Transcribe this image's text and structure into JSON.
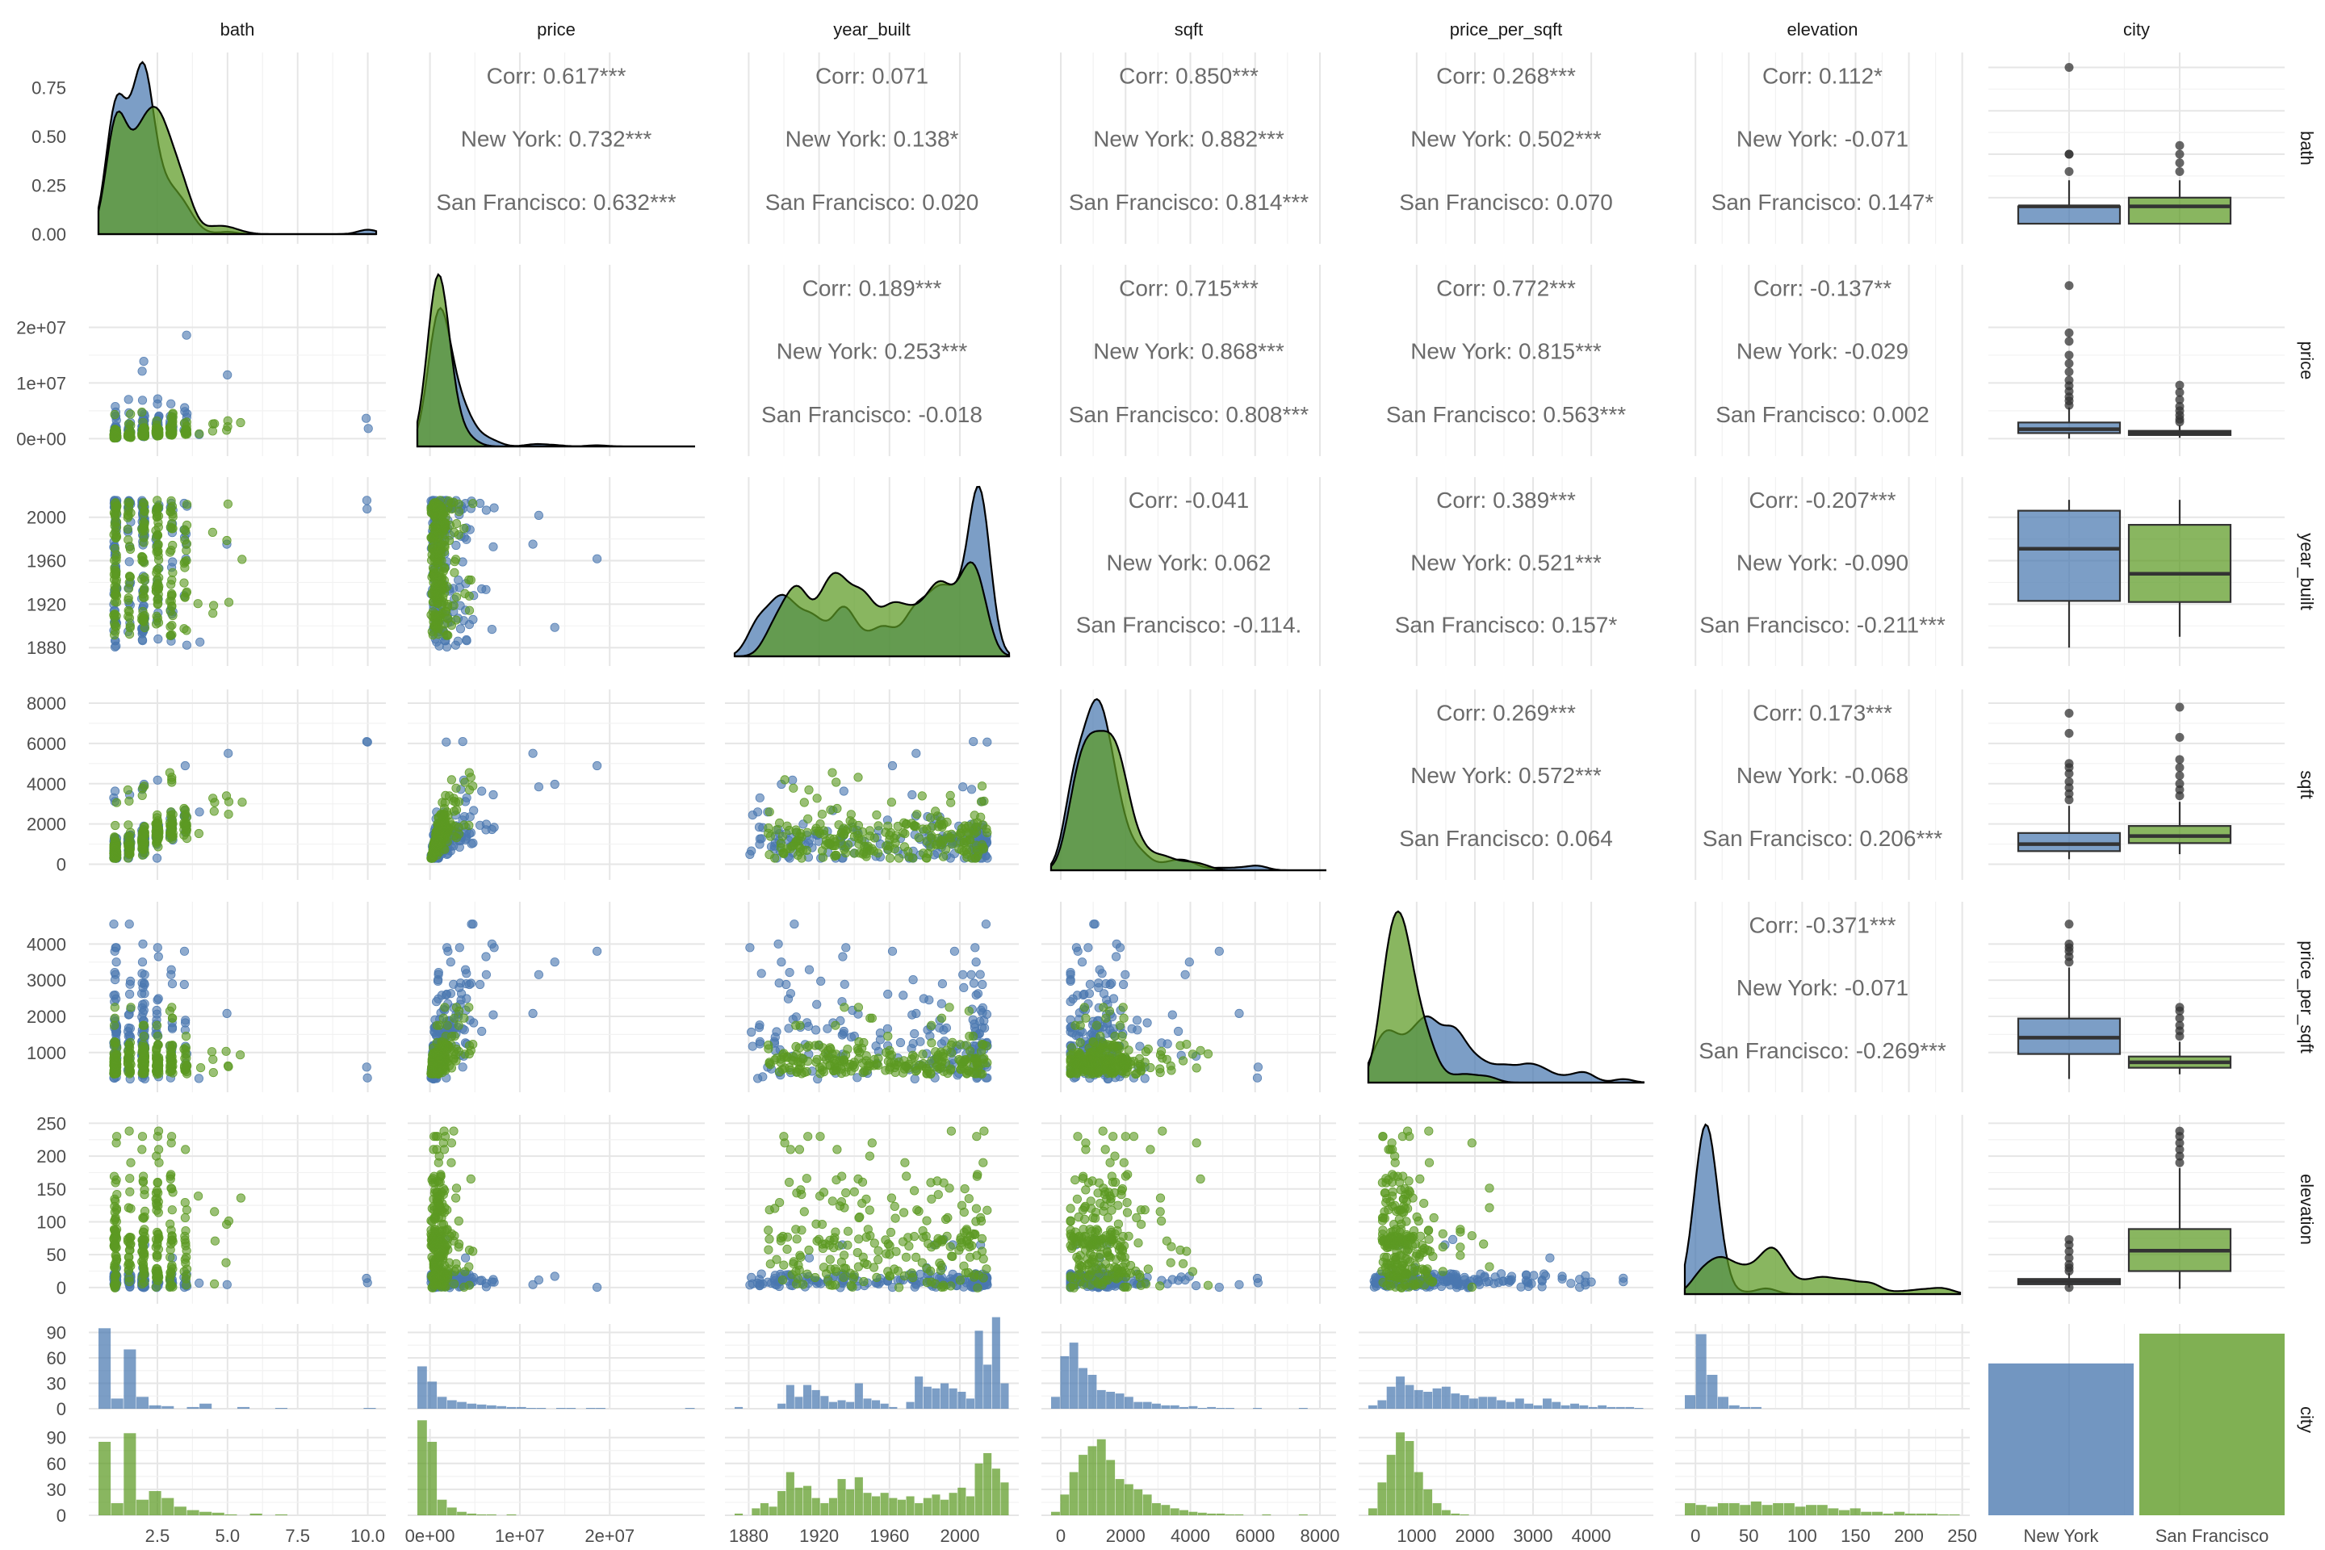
{
  "chart_data": {
    "type": "pairs",
    "variables": [
      "bath",
      "price",
      "year_built",
      "sqft",
      "price_per_sqft",
      "elevation",
      "city"
    ],
    "groups": [
      "New York",
      "San Francisco"
    ],
    "colors": {
      "New York": "#4a78b0",
      "San Francisco": "#5c9a22",
      "dark_fill": "#5b8c3e",
      "line": "#000000"
    },
    "axes": {
      "bath": {
        "range": [
          0.4,
          10.3
        ],
        "ticks": [
          2.5,
          5.0,
          7.5,
          10.0
        ],
        "labels": [
          "2.5",
          "5.0",
          "7.5",
          "10.0"
        ]
      },
      "price": {
        "range": [
          -1400000.0,
          29500000.0
        ],
        "ticks": [
          0,
          10000000.0,
          20000000.0
        ],
        "labels": [
          "0e+00",
          "1e+07",
          "2e+07"
        ]
      },
      "year_built": {
        "range": [
          1872,
          2028
        ],
        "ticks": [
          1880,
          1920,
          1960,
          2000
        ],
        "labels": [
          "1880",
          "1920",
          "1960",
          "2000"
        ]
      },
      "sqft": {
        "range": [
          -300,
          8200
        ],
        "ticks": [
          0,
          2000,
          4000,
          6000,
          8000
        ],
        "labels": [
          "0",
          "2000",
          "4000",
          "6000",
          "8000"
        ]
      },
      "price_per_sqft": {
        "range": [
          170,
          4900
        ],
        "ticks": [
          1000,
          2000,
          3000,
          4000
        ],
        "labels": [
          "1000",
          "2000",
          "3000",
          "4000"
        ]
      },
      "elevation": {
        "range": [
          -10,
          248
        ],
        "ticks": [
          0,
          50,
          100,
          150,
          200,
          250
        ],
        "labels": [
          "0",
          "50",
          "100",
          "150",
          "200",
          "250"
        ]
      },
      "city": {
        "categories": [
          "New York",
          "San Francisco"
        ]
      }
    },
    "diag_density_yaxis": {
      "range": [
        0,
        0.88
      ],
      "ticks": [
        0,
        0.25,
        0.5,
        0.75
      ],
      "labels": [
        "0.00",
        "0.25",
        "0.50",
        "0.75"
      ]
    },
    "histogram_yaxis": {
      "New York": {
        "ticks": [
          0,
          30,
          60,
          90
        ],
        "labels": [
          "0",
          "30",
          "60",
          "90"
        ]
      },
      "San Francisco": {
        "ticks": [
          0,
          30,
          60,
          90
        ],
        "labels": [
          "0",
          "30",
          "60",
          "90"
        ]
      }
    },
    "correlations": [
      {
        "row": "bath",
        "col": "price",
        "lines": [
          "Corr: 0.617***",
          "New York: 0.732***",
          "San Francisco: 0.632***"
        ]
      },
      {
        "row": "bath",
        "col": "year_built",
        "lines": [
          "Corr: 0.071",
          "New York: 0.138*",
          "San Francisco: 0.020"
        ]
      },
      {
        "row": "bath",
        "col": "sqft",
        "lines": [
          "Corr: 0.850***",
          "New York: 0.882***",
          "San Francisco: 0.814***"
        ]
      },
      {
        "row": "bath",
        "col": "price_per_sqft",
        "lines": [
          "Corr: 0.268***",
          "New York: 0.502***",
          "San Francisco: 0.070"
        ]
      },
      {
        "row": "bath",
        "col": "elevation",
        "lines": [
          "Corr: 0.112*",
          "New York: -0.071",
          "San Francisco: 0.147*"
        ]
      },
      {
        "row": "price",
        "col": "year_built",
        "lines": [
          "Corr: 0.189***",
          "New York: 0.253***",
          "San Francisco: -0.018"
        ]
      },
      {
        "row": "price",
        "col": "sqft",
        "lines": [
          "Corr: 0.715***",
          "New York: 0.868***",
          "San Francisco: 0.808***"
        ]
      },
      {
        "row": "price",
        "col": "price_per_sqft",
        "lines": [
          "Corr: 0.772***",
          "New York: 0.815***",
          "San Francisco: 0.563***"
        ]
      },
      {
        "row": "price",
        "col": "elevation",
        "lines": [
          "Corr: -0.137**",
          "New York: -0.029",
          "San Francisco: 0.002"
        ]
      },
      {
        "row": "year_built",
        "col": "sqft",
        "lines": [
          "Corr: -0.041",
          "New York: 0.062",
          "San Francisco: -0.114."
        ]
      },
      {
        "row": "year_built",
        "col": "price_per_sqft",
        "lines": [
          "Corr: 0.389***",
          "New York: 0.521***",
          "San Francisco: 0.157*"
        ]
      },
      {
        "row": "year_built",
        "col": "elevation",
        "lines": [
          "Corr: -0.207***",
          "New York: -0.090",
          "San Francisco: -0.211***"
        ]
      },
      {
        "row": "sqft",
        "col": "price_per_sqft",
        "lines": [
          "Corr: 0.269***",
          "New York: 0.572***",
          "San Francisco: 0.064"
        ]
      },
      {
        "row": "sqft",
        "col": "elevation",
        "lines": [
          "Corr: 0.173***",
          "New York: -0.068",
          "San Francisco: 0.206***"
        ]
      },
      {
        "row": "price_per_sqft",
        "col": "elevation",
        "lines": [
          "Corr: -0.371***",
          "New York: -0.071",
          "San Francisco: -0.269***"
        ]
      }
    ],
    "boxplots": {
      "bath": {
        "New York": {
          "min": 1,
          "q1": 1,
          "median": 2,
          "q3": 2,
          "max": 3.5,
          "outliers": [
            4,
            5,
            5,
            10
          ]
        },
        "San Francisco": {
          "min": 1,
          "q1": 1,
          "median": 2,
          "q3": 2.5,
          "max": 3.5,
          "outliers": [
            4,
            4.5,
            5,
            5.5
          ]
        }
      },
      "price": {
        "New York": {
          "min": 0,
          "q1": 1000000.0,
          "median": 1700000.0,
          "q3": 2900000.0,
          "max": 5600000.0,
          "outliers": [
            6000000.0,
            6800000.0,
            7500000.0,
            8500000.0,
            9500000.0,
            10500000.0,
            12000000.0,
            13500000.0,
            15000000.0,
            17500000.0,
            19000000.0,
            27500000.0
          ]
        },
        "San Francisco": {
          "min": 150000.0,
          "q1": 650000.0,
          "median": 950000.0,
          "q3": 1400000.0,
          "max": 2400000.0,
          "outliers": [
            3000000.0,
            3500000.0,
            4200000.0,
            5000000.0,
            5800000.0,
            7000000.0,
            8300000.0,
            9600000.0
          ]
        }
      },
      "year_built": {
        "New York": {
          "min": 1880,
          "q1": 1923,
          "median": 1971,
          "q3": 2006,
          "max": 2016,
          "outliers": []
        },
        "San Francisco": {
          "min": 1890,
          "q1": 1922,
          "median": 1948,
          "q3": 1993,
          "max": 2016,
          "outliers": []
        }
      },
      "sqft": {
        "New York": {
          "min": 250,
          "q1": 650,
          "median": 1000,
          "q3": 1550,
          "max": 2900,
          "outliers": [
            3200,
            3500,
            3800,
            4100,
            4500,
            4800,
            5000,
            6500,
            7500
          ]
        },
        "San Francisco": {
          "min": 500,
          "q1": 1050,
          "median": 1400,
          "q3": 1900,
          "max": 3100,
          "outliers": [
            3400,
            3700,
            4000,
            4400,
            4800,
            5200,
            6300,
            7800
          ]
        }
      },
      "price_per_sqft": {
        "New York": {
          "min": 270,
          "q1": 960,
          "median": 1410,
          "q3": 1940,
          "max": 3350,
          "outliers": [
            3500,
            3650,
            3800,
            3900,
            4000,
            4550
          ]
        },
        "San Francisco": {
          "min": 400,
          "q1": 580,
          "median": 730,
          "q3": 890,
          "max": 1300,
          "outliers": [
            1450,
            1600,
            1750,
            1950,
            2150,
            2250
          ]
        }
      },
      "elevation": {
        "New York": {
          "min": 0,
          "q1": 5,
          "median": 9,
          "q3": 13,
          "max": 22,
          "outliers": [
            25,
            30,
            35,
            45,
            55,
            65,
            73,
            0
          ]
        },
        "San Francisco": {
          "min": -2,
          "q1": 25,
          "median": 56,
          "q3": 89,
          "max": 182,
          "outliers": [
            190,
            200,
            210,
            220,
            230,
            238
          ]
        }
      }
    },
    "city_counts": {
      "New York": 224,
      "San Francisco": 268
    },
    "histograms": {
      "bath": {
        "New York": [
          95,
          12,
          70,
          14,
          4,
          3,
          0,
          2,
          6,
          0,
          0,
          2,
          0,
          0,
          1,
          0,
          0,
          0,
          0,
          0,
          0,
          1
        ],
        "San Francisco": [
          85,
          14,
          95,
          18,
          28,
          20,
          10,
          6,
          4,
          3,
          1,
          0,
          2,
          0,
          1,
          0,
          0,
          0,
          0,
          0,
          0,
          0
        ]
      },
      "price": {
        "New York": [
          50,
          32,
          14,
          10,
          8,
          6,
          5,
          4,
          3,
          2,
          2,
          1,
          1,
          0,
          1,
          1,
          0,
          1,
          1,
          0,
          0,
          0,
          0,
          0,
          0,
          0,
          0,
          1
        ],
        "San Francisco": [
          110,
          85,
          18,
          9,
          4,
          2,
          1,
          1,
          0,
          1,
          0,
          0,
          0,
          0,
          0,
          0,
          0,
          0,
          0,
          0,
          0,
          0,
          0,
          0,
          0,
          0,
          0,
          0
        ]
      },
      "year_built": {
        "New York": [
          2,
          0,
          0,
          0,
          0,
          6,
          28,
          14,
          28,
          22,
          15,
          8,
          10,
          8,
          30,
          12,
          10,
          6,
          2,
          0,
          8,
          38,
          26,
          24,
          30,
          24,
          20,
          12,
          92,
          52,
          108,
          30
        ],
        "San Francisco": [
          2,
          0,
          8,
          14,
          10,
          28,
          50,
          32,
          34,
          20,
          14,
          20,
          42,
          30,
          44,
          26,
          22,
          26,
          20,
          18,
          22,
          14,
          20,
          24,
          18,
          26,
          32,
          22,
          60,
          72,
          54,
          38
        ]
      },
      "sqft": {
        "New York": [
          14,
          62,
          78,
          48,
          40,
          22,
          20,
          18,
          14,
          8,
          8,
          6,
          4,
          4,
          2,
          3,
          1,
          2,
          1,
          1,
          0,
          0,
          1,
          0,
          0,
          0,
          0,
          1,
          0,
          0
        ],
        "San Francisco": [
          4,
          24,
          50,
          70,
          80,
          88,
          64,
          42,
          36,
          30,
          24,
          14,
          12,
          8,
          6,
          4,
          3,
          2,
          2,
          1,
          1,
          0,
          0,
          1,
          0,
          0,
          0,
          1,
          0,
          0
        ]
      },
      "price_per_sqft": {
        "New York": [
          4,
          10,
          26,
          38,
          28,
          22,
          20,
          24,
          26,
          18,
          16,
          12,
          14,
          14,
          10,
          8,
          12,
          6,
          4,
          12,
          8,
          4,
          6,
          4,
          2,
          4,
          2,
          2,
          2,
          1
        ],
        "San Francisco": [
          8,
          38,
          70,
          96,
          86,
          50,
          30,
          14,
          6,
          2,
          1,
          0,
          0,
          0,
          0,
          0,
          0,
          0,
          0,
          0,
          0,
          0,
          0,
          0,
          0,
          0,
          0,
          0,
          0,
          0
        ]
      },
      "elevation": {
        "New York": [
          16,
          88,
          40,
          14,
          4,
          2,
          2,
          0,
          0,
          0,
          0,
          0,
          0,
          0,
          0,
          0,
          0,
          0,
          0,
          0,
          0,
          0,
          0,
          0,
          0
        ],
        "San Francisco": [
          14,
          12,
          10,
          14,
          14,
          12,
          16,
          12,
          14,
          14,
          10,
          12,
          12,
          8,
          6,
          8,
          4,
          4,
          2,
          4,
          2,
          2,
          2,
          1,
          1
        ]
      }
    },
    "scatter_seed": 11
  }
}
